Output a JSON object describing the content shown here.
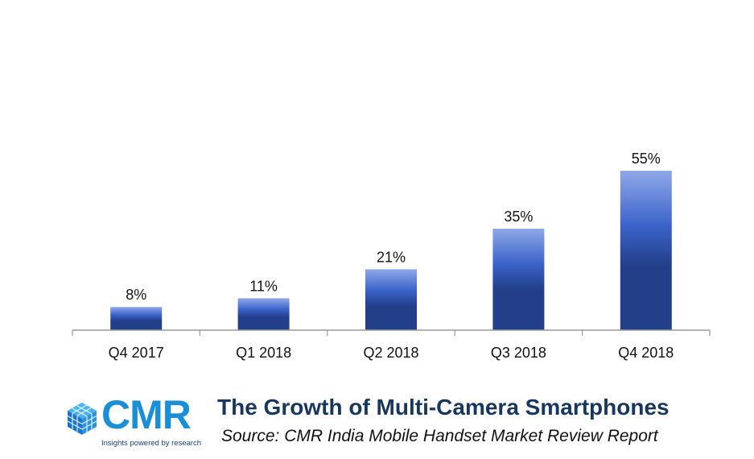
{
  "chart_data": {
    "type": "bar",
    "categories": [
      "Q4 2017",
      "Q1 2018",
      "Q2 2018",
      "Q3 2018",
      "Q4 2018"
    ],
    "values": [
      8,
      11,
      21,
      35,
      55
    ],
    "data_labels": [
      "8%",
      "11%",
      "21%",
      "35%",
      "55%"
    ],
    "ylim": [
      0,
      70
    ],
    "grid": false,
    "legend": "none",
    "colors": {
      "bar_top": "#8fa8e8",
      "bar_mid": "#3a62c9",
      "bar_bottom": "#243f8a",
      "axis": "#9a9a9a"
    }
  },
  "footer": {
    "logo_text": "CMR",
    "logo_tagline": "Insights powered by research",
    "title": "The Growth of Multi-Camera Smartphones",
    "source": "Source:  CMR India Mobile Handset Market Review Report",
    "colors": {
      "logo": "#1a8fd6",
      "title": "#17375e"
    }
  }
}
